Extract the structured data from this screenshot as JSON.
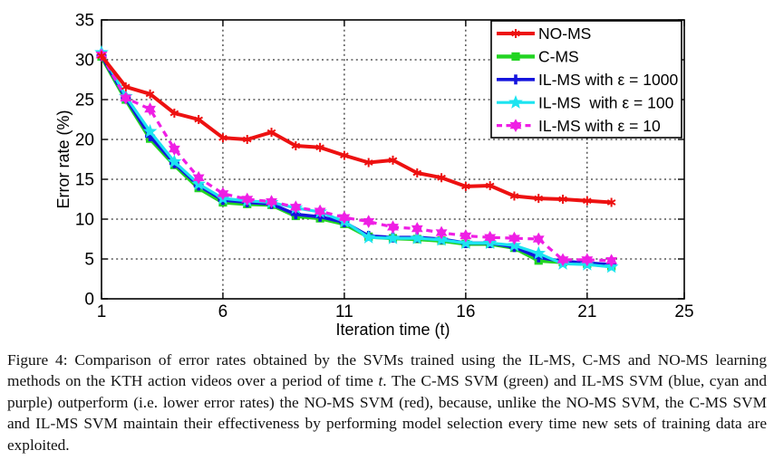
{
  "figure": {
    "caption": {
      "label": "Figure 4:",
      "before_italic": " Comparison of error rates obtained by the SVMs trained using the IL-MS, C-MS and NO-MS learning methods on the KTH action videos over a period of time ",
      "italic_term": "t",
      "after_italic": ". The C-MS SVM (green) and IL-MS SVM (blue, cyan and purple) outperform (i.e. lower error rates) the NO-MS SVM (red), because, unlike the NO-MS SVM, the C-MS SVM and IL-MS SVM maintain their effectiveness by performing model selection every time new sets of training data are exploited."
    }
  },
  "chart_data": {
    "type": "line",
    "title": "",
    "xlabel": "Iteration time (t)",
    "ylabel": "Error rate (%)",
    "xlim": [
      1,
      25
    ],
    "ylim": [
      0,
      35
    ],
    "xticks": [
      1,
      6,
      11,
      16,
      21,
      25
    ],
    "yticks": [
      0,
      5,
      10,
      15,
      20,
      25,
      30,
      35
    ],
    "grid": true,
    "legend_position": "top-right",
    "x": [
      1,
      2,
      3,
      4,
      5,
      6,
      7,
      8,
      9,
      10,
      11,
      12,
      13,
      14,
      15,
      16,
      17,
      18,
      19,
      20,
      21,
      22
    ],
    "series": [
      {
        "name": "NO-MS",
        "label": "NO-MS",
        "color": "#ed1111",
        "line_style": "solid",
        "marker": "asterisk",
        "values": [
          30.5,
          26.6,
          25.7,
          23.3,
          22.5,
          20.2,
          20.0,
          20.9,
          19.2,
          19.0,
          18.0,
          17.1,
          17.4,
          15.8,
          15.2,
          14.1,
          14.2,
          12.9,
          12.6,
          12.5,
          12.3,
          12.1
        ]
      },
      {
        "name": "C-MS",
        "label": "C-MS",
        "color": "#22d422",
        "line_style": "solid",
        "marker": "square",
        "values": [
          30.4,
          25.0,
          20.1,
          16.8,
          13.9,
          12.1,
          11.9,
          11.8,
          10.4,
          10.1,
          9.4,
          7.8,
          7.6,
          7.5,
          7.3,
          6.9,
          6.9,
          6.4,
          4.8,
          4.6,
          4.4,
          4.1
        ]
      },
      {
        "name": "IL-MS with eps 1000",
        "label": "IL-MS with ε = 1000",
        "color": "#1414dd",
        "line_style": "solid",
        "marker": "plus",
        "values": [
          30.5,
          25.2,
          20.4,
          17.0,
          14.2,
          12.4,
          12.1,
          11.9,
          10.6,
          10.3,
          9.6,
          7.9,
          7.7,
          7.7,
          7.5,
          7.0,
          7.0,
          6.5,
          5.2,
          4.7,
          4.5,
          4.3
        ]
      },
      {
        "name": "IL-MS with eps 100",
        "label": "IL-MS  with ε = 100",
        "color": "#1ce4f0",
        "line_style": "solid",
        "marker": "star5",
        "values": [
          30.9,
          25.4,
          21.0,
          17.2,
          14.4,
          12.6,
          12.3,
          12.1,
          11.4,
          10.9,
          9.7,
          7.7,
          7.6,
          7.6,
          7.4,
          7.0,
          7.0,
          6.7,
          5.7,
          4.4,
          4.3,
          4.0
        ]
      },
      {
        "name": "IL-MS with eps 10",
        "label": "IL-MS with ε = 10",
        "color": "#ef1fe4",
        "line_style": "dashed",
        "marker": "hexagram",
        "values": [
          30.6,
          25.2,
          23.8,
          18.8,
          15.2,
          13.2,
          12.5,
          12.2,
          11.5,
          11.0,
          10.2,
          9.7,
          9.0,
          8.8,
          8.3,
          7.9,
          7.7,
          7.6,
          7.5,
          4.9,
          4.9,
          4.8
        ]
      }
    ]
  }
}
